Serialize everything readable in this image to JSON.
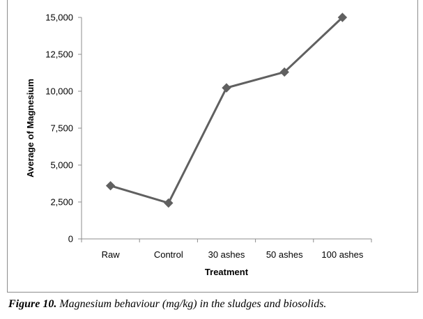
{
  "chart_data": {
    "type": "line",
    "title": "",
    "xlabel": "Treatment",
    "ylabel": "Average of Magnesium",
    "categories": [
      "Raw",
      "Control",
      "30 ashes",
      "50 ashes",
      "100 ashes"
    ],
    "series": [
      {
        "name": "Average of Magnesium",
        "values": [
          3600,
          2430,
          10230,
          11300,
          15000
        ],
        "color": "#606060",
        "marker": "diamond"
      }
    ],
    "ylim": [
      0,
      15000
    ],
    "yticks": [
      0,
      2500,
      5000,
      7500,
      10000,
      12500,
      15000
    ],
    "ytick_labels": [
      "0",
      "2,500",
      "5,000",
      "7,500",
      "10,000",
      "12,500",
      "15,000"
    ],
    "grid": false,
    "legend": "none",
    "axis_color": "#8c8c8c"
  },
  "caption": {
    "label": "Figure 10.",
    "text": " Magnesium behaviour (mg/kg) in the sludges and biosolids."
  }
}
